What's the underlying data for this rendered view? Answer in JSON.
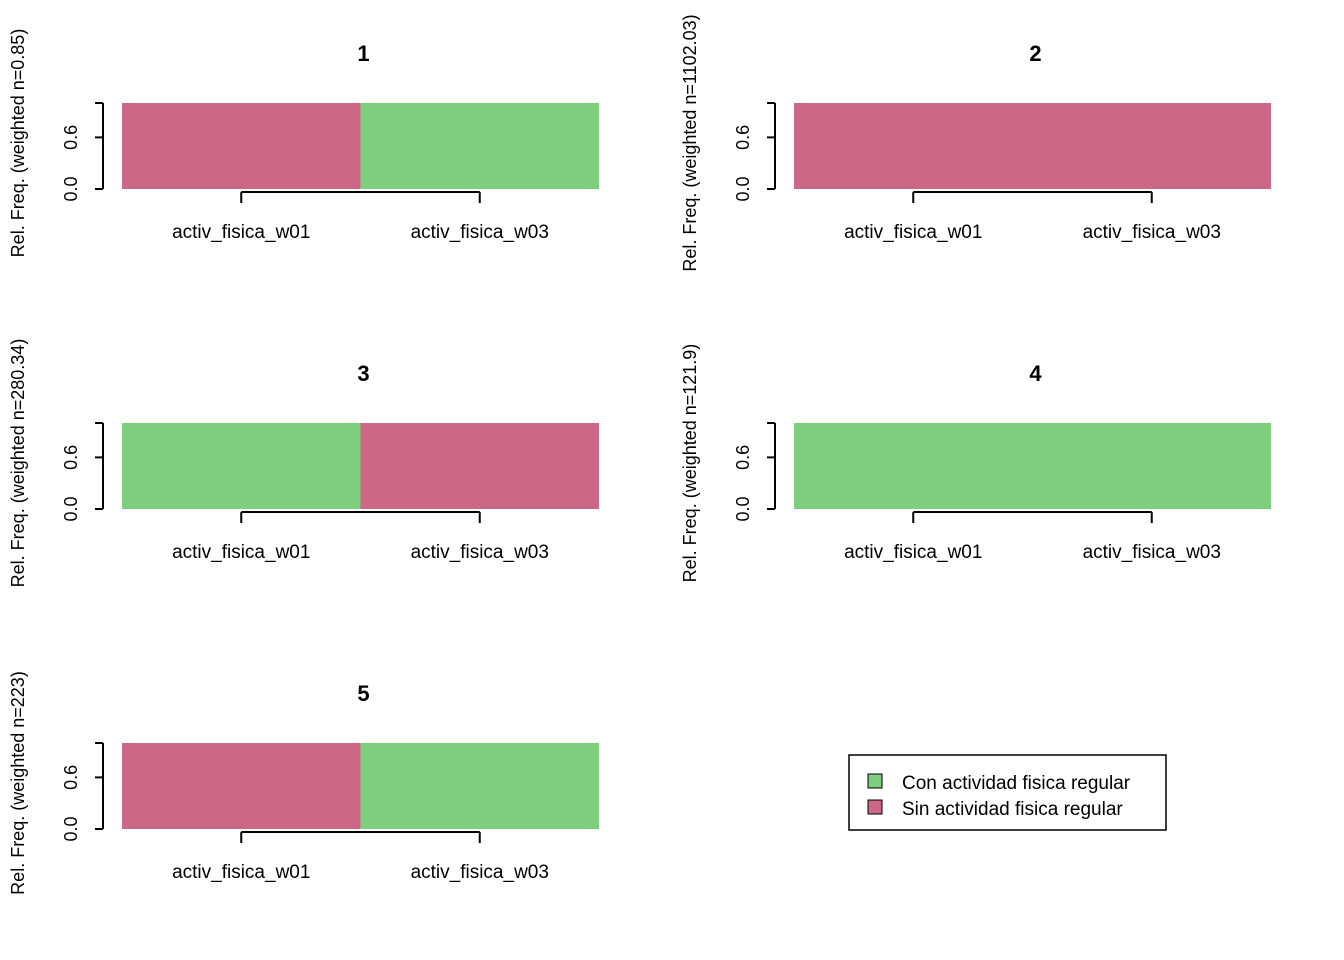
{
  "chart_data": [
    {
      "type": "bar",
      "title": "1",
      "ylabel": "Rel. Freq. (weighted n=0.85)",
      "categories": [
        "activ_fisica_w01",
        "activ_fisica_w03"
      ],
      "yticks": [
        "0.0",
        "0.6"
      ],
      "ylim": [
        0,
        1
      ],
      "stacked": true,
      "series": [
        {
          "name": "Con actividad fisica regular",
          "values": [
            0,
            1
          ]
        },
        {
          "name": "Sin actividad fisica regular",
          "values": [
            1,
            0
          ]
        }
      ]
    },
    {
      "type": "bar",
      "title": "2",
      "ylabel": "Rel. Freq. (weighted n=1102.03)",
      "categories": [
        "activ_fisica_w01",
        "activ_fisica_w03"
      ],
      "yticks": [
        "0.0",
        "0.6"
      ],
      "ylim": [
        0,
        1
      ],
      "stacked": true,
      "series": [
        {
          "name": "Con actividad fisica regular",
          "values": [
            0,
            0
          ]
        },
        {
          "name": "Sin actividad fisica regular",
          "values": [
            1,
            1
          ]
        }
      ]
    },
    {
      "type": "bar",
      "title": "3",
      "ylabel": "Rel. Freq. (weighted n=280.34)",
      "categories": [
        "activ_fisica_w01",
        "activ_fisica_w03"
      ],
      "yticks": [
        "0.0",
        "0.6"
      ],
      "ylim": [
        0,
        1
      ],
      "stacked": true,
      "series": [
        {
          "name": "Con actividad fisica regular",
          "values": [
            1,
            0
          ]
        },
        {
          "name": "Sin actividad fisica regular",
          "values": [
            0,
            1
          ]
        }
      ]
    },
    {
      "type": "bar",
      "title": "4",
      "ylabel": "Rel. Freq. (weighted n=121.9)",
      "categories": [
        "activ_fisica_w01",
        "activ_fisica_w03"
      ],
      "yticks": [
        "0.0",
        "0.6"
      ],
      "ylim": [
        0,
        1
      ],
      "stacked": true,
      "series": [
        {
          "name": "Con actividad fisica regular",
          "values": [
            1,
            1
          ]
        },
        {
          "name": "Sin actividad fisica regular",
          "values": [
            0,
            0
          ]
        }
      ]
    },
    {
      "type": "bar",
      "title": "5",
      "ylabel": "Rel. Freq. (weighted n=223)",
      "categories": [
        "activ_fisica_w01",
        "activ_fisica_w03"
      ],
      "yticks": [
        "0.0",
        "0.6"
      ],
      "ylim": [
        0,
        1
      ],
      "stacked": true,
      "series": [
        {
          "name": "Con actividad fisica regular",
          "values": [
            0,
            1
          ]
        },
        {
          "name": "Sin actividad fisica regular",
          "values": [
            1,
            0
          ]
        }
      ]
    }
  ],
  "legend": {
    "items": [
      {
        "label": "Con actividad fisica regular",
        "color": "#7dce7d"
      },
      {
        "label": "Sin actividad fisica regular",
        "color": "#cc6785"
      }
    ]
  },
  "colors": {
    "Con actividad fisica regular": "#7dce7d",
    "Sin actividad fisica regular": "#cc6785"
  }
}
